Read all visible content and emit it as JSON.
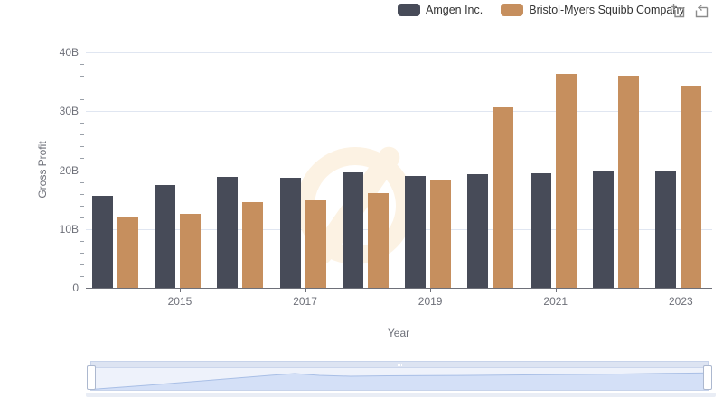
{
  "legend": {
    "items": [
      {
        "label": "Amgen Inc.",
        "color": "#474B58"
      },
      {
        "label": "Bristol-Myers Squibb Company",
        "color": "#C68F5E"
      }
    ]
  },
  "toolbox": {
    "icons": [
      "data-zoom-select",
      "restore"
    ]
  },
  "chart_data": {
    "type": "bar",
    "title": "",
    "xlabel": "Year",
    "ylabel": "Gross Profit",
    "categories": [
      "2014",
      "2015",
      "2016",
      "2017",
      "2018",
      "2019",
      "2020",
      "2021",
      "2022",
      "2023"
    ],
    "series": [
      {
        "name": "Amgen Inc.",
        "color": "#474B58",
        "values": [
          15.6,
          17.5,
          18.8,
          18.7,
          19.6,
          19.0,
          19.3,
          19.5,
          20.0,
          19.7
        ]
      },
      {
        "name": "Bristol-Myers Squibb Company",
        "color": "#C68F5E",
        "values": [
          12.0,
          12.6,
          14.5,
          14.8,
          16.1,
          18.2,
          30.7,
          36.4,
          36.0,
          34.3
        ]
      }
    ],
    "unit": "B",
    "ylim": [
      0,
      40
    ],
    "y_ticks": [
      {
        "value": 0,
        "label": "0"
      },
      {
        "value": 10,
        "label": "10B"
      },
      {
        "value": 20,
        "label": "20B"
      },
      {
        "value": 30,
        "label": "30B"
      },
      {
        "value": 40,
        "label": "40B"
      }
    ],
    "y_minor_tick_step": 2,
    "x_tick_indices": [
      1,
      3,
      5,
      7,
      9
    ],
    "x_tick_labels": [
      "2015",
      "2017",
      "2019",
      "2021",
      "2023"
    ],
    "grid": true,
    "legend_position": "top"
  },
  "slider": {
    "range_start_pct": 0,
    "range_end_pct": 100,
    "shadow_profile": [
      [
        0,
        0.02
      ],
      [
        4,
        0.1
      ],
      [
        9,
        0.2
      ],
      [
        14,
        0.31
      ],
      [
        19,
        0.42
      ],
      [
        24,
        0.53
      ],
      [
        29,
        0.64
      ],
      [
        33,
        0.72
      ],
      [
        37,
        0.64
      ],
      [
        42,
        0.6
      ],
      [
        48,
        0.62
      ],
      [
        55,
        0.63
      ],
      [
        62,
        0.64
      ],
      [
        70,
        0.66
      ],
      [
        78,
        0.68
      ],
      [
        86,
        0.7
      ],
      [
        93,
        0.73
      ],
      [
        100,
        0.75
      ]
    ]
  },
  "colors": {
    "axis_text": "#6E7079",
    "gridline": "#E0E6F1",
    "watermark": "#FCF2E3",
    "slider_fill": "#CFDDF6",
    "slider_line": "#A9BFE6"
  }
}
